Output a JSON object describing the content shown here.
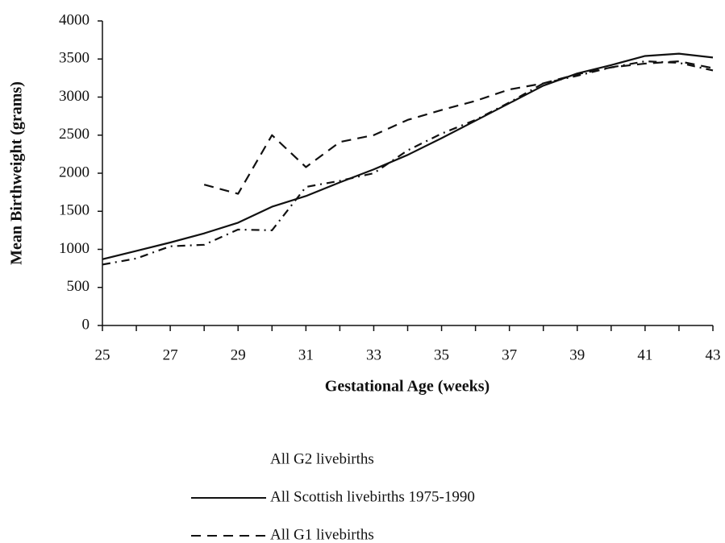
{
  "chart_data": {
    "type": "line",
    "x_label": "Gestational Age (weeks)",
    "y_label": "Mean Birthweight (grams)",
    "x": [
      25,
      26,
      27,
      28,
      29,
      30,
      31,
      32,
      33,
      34,
      35,
      36,
      37,
      38,
      39,
      40,
      41,
      42,
      43
    ],
    "series": [
      {
        "name": "All G2 livebirths",
        "color": "#111111",
        "dash": "10,6,2,6",
        "values": [
          800,
          880,
          1040,
          1060,
          1260,
          1250,
          1820,
          1900,
          2000,
          2300,
          2520,
          2700,
          2930,
          3180,
          3280,
          3390,
          3470,
          3450,
          3350
        ]
      },
      {
        "name": "All Scottish livebirths 1975-1990",
        "color": "#111111",
        "dash": "none",
        "values": [
          870,
          980,
          1090,
          1210,
          1350,
          1560,
          1700,
          1880,
          2050,
          2240,
          2460,
          2690,
          2920,
          3150,
          3310,
          3420,
          3540,
          3570,
          3520
        ]
      },
      {
        "name": "All G1 livebirths",
        "color": "#111111",
        "dash": "12,8",
        "values": [
          null,
          null,
          null,
          1850,
          1730,
          2500,
          2080,
          2410,
          2500,
          2700,
          2830,
          2950,
          3100,
          3180,
          3300,
          3390,
          3440,
          3470,
          3380
        ]
      }
    ],
    "xlim": [
      25,
      43
    ],
    "xticks": [
      25,
      27,
      29,
      31,
      33,
      35,
      37,
      39,
      41,
      43
    ],
    "ylim": [
      0,
      4000
    ],
    "yticks": [
      0,
      500,
      1000,
      1500,
      2000,
      2500,
      3000,
      3500,
      4000
    ],
    "grid": false,
    "legend": "bottom"
  }
}
